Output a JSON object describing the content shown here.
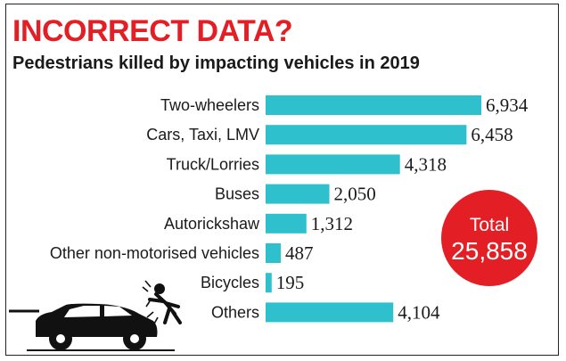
{
  "colors": {
    "accent": "#e31e24",
    "bar": "#2ec0cc",
    "text": "#1a1a1a"
  },
  "title": "INCORRECT DATA?",
  "subtitle": "Pedestrians killed by impacting vehicles in 2019",
  "total": {
    "label": "Total",
    "value": "25,858"
  },
  "illustration": {
    "icon": "car-hitting-pedestrian-icon"
  },
  "chart_data": {
    "type": "bar",
    "orientation": "horizontal",
    "categories": [
      "Two-wheelers",
      "Cars, Taxi, LMV",
      "Truck/Lorries",
      "Buses",
      "Autorickshaw",
      "Other non-motorised vehicles",
      "Bicycles",
      "Others"
    ],
    "values": [
      6934,
      6458,
      4318,
      2050,
      1312,
      487,
      195,
      4104
    ],
    "value_labels": [
      "6,934",
      "6,458",
      "4,318",
      "2,050",
      "1,312",
      "487",
      "195",
      "4,104"
    ],
    "grid": false,
    "legend": "none"
  }
}
